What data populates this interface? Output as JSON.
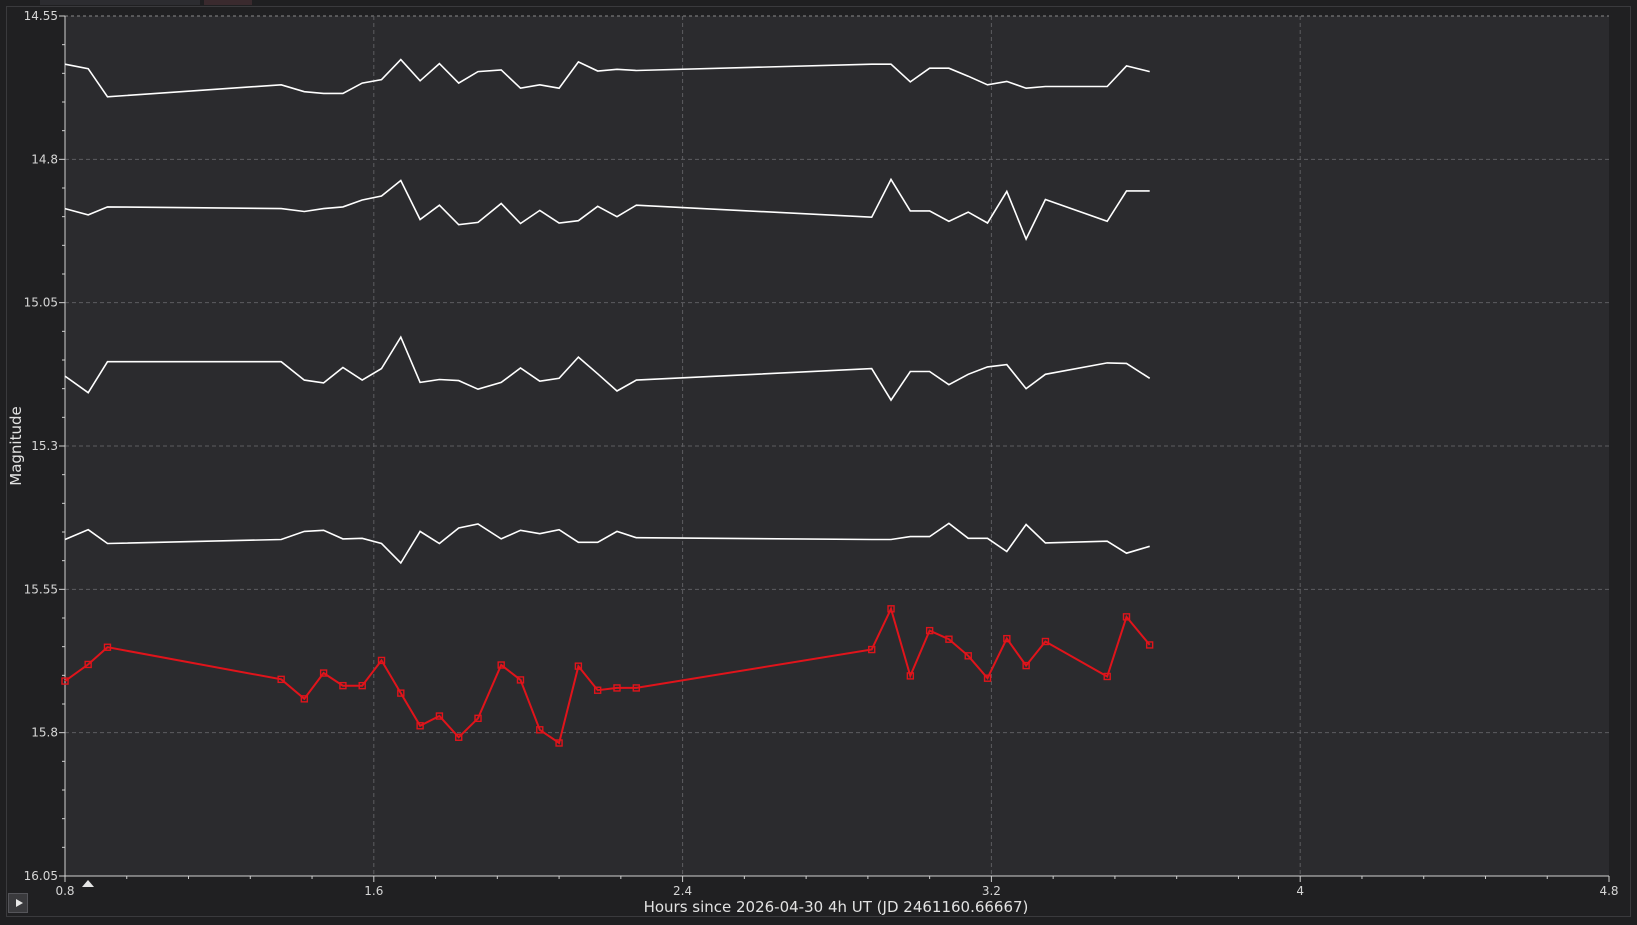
{
  "chart_data": {
    "type": "line",
    "xlabel": "Hours since 2026-04-30 4h UT (JD 2461160.66667)",
    "ylabel": "Magnitude",
    "xlim": [
      0.8,
      4.8
    ],
    "ylim": [
      14.55,
      16.05
    ],
    "y_inverted": true,
    "grid": true,
    "x_ticks": [
      "0.8",
      "1.6",
      "2.4",
      "3.2",
      "4",
      "4.8"
    ],
    "y_ticks": [
      "14.55",
      "14.8",
      "15.05",
      "15.3",
      "15.55",
      "15.8",
      "16.05"
    ],
    "x": [
      0.8,
      0.86,
      0.91,
      1.36,
      1.42,
      1.47,
      1.52,
      1.57,
      1.62,
      1.67,
      1.72,
      1.77,
      1.82,
      1.87,
      1.93,
      1.98,
      2.03,
      2.08,
      2.13,
      2.18,
      2.23,
      2.28,
      2.89,
      2.94,
      2.99,
      3.04,
      3.09,
      3.14,
      3.19,
      3.24,
      3.29,
      3.34,
      3.5,
      3.55,
      3.61
    ],
    "series": [
      {
        "color": "#ffffff",
        "values": [
          14.634,
          14.642,
          14.691,
          14.67,
          14.682,
          14.685,
          14.685,
          14.667,
          14.661,
          14.626,
          14.663,
          14.633,
          14.667,
          14.647,
          14.644,
          14.676,
          14.67,
          14.676,
          14.63,
          14.646,
          14.643,
          14.645,
          14.634,
          14.634,
          14.665,
          14.641,
          14.641,
          14.655,
          14.67,
          14.664,
          14.676,
          14.673,
          14.673,
          14.637,
          14.647
        ],
        "marker": "none"
      },
      {
        "color": "#ffffff",
        "values": [
          14.886,
          14.897,
          14.883,
          14.886,
          14.891,
          14.886,
          14.883,
          14.871,
          14.864,
          14.837,
          14.905,
          14.88,
          14.914,
          14.91,
          14.877,
          14.912,
          14.889,
          14.911,
          14.907,
          14.882,
          14.9,
          14.88,
          14.901,
          14.835,
          14.89,
          14.89,
          14.908,
          14.892,
          14.911,
          14.856,
          14.939,
          14.87,
          14.908,
          14.855,
          14.855
        ],
        "marker": "none"
      },
      {
        "color": "#ffffff",
        "values": [
          15.178,
          15.207,
          15.153,
          15.153,
          15.185,
          15.19,
          15.163,
          15.185,
          15.165,
          15.11,
          15.189,
          15.184,
          15.186,
          15.201,
          15.189,
          15.164,
          15.187,
          15.182,
          15.145,
          15.174,
          15.204,
          15.185,
          15.165,
          15.22,
          15.17,
          15.17,
          15.193,
          15.175,
          15.162,
          15.158,
          15.2,
          15.175,
          15.155,
          15.156,
          15.182
        ],
        "marker": "none"
      },
      {
        "color": "#ffffff",
        "values": [
          15.463,
          15.446,
          15.47,
          15.463,
          15.449,
          15.447,
          15.462,
          15.461,
          15.47,
          15.504,
          15.449,
          15.47,
          15.443,
          15.436,
          15.462,
          15.447,
          15.453,
          15.446,
          15.468,
          15.468,
          15.449,
          15.46,
          15.463,
          15.463,
          15.458,
          15.458,
          15.435,
          15.461,
          15.461,
          15.484,
          15.437,
          15.469,
          15.466,
          15.487,
          15.475
        ],
        "marker": "none"
      },
      {
        "color": "#e0141b",
        "values": [
          15.71,
          15.681,
          15.651,
          15.707,
          15.741,
          15.696,
          15.718,
          15.718,
          15.674,
          15.731,
          15.788,
          15.771,
          15.808,
          15.775,
          15.682,
          15.708,
          15.795,
          15.818,
          15.684,
          15.726,
          15.722,
          15.722,
          15.655,
          15.584,
          15.701,
          15.622,
          15.637,
          15.666,
          15.705,
          15.636,
          15.683,
          15.641,
          15.702,
          15.598,
          15.647
        ],
        "marker": "square"
      }
    ]
  },
  "controls": {
    "play_icon": "play-triangle-icon",
    "marker_icon": "up-triangle-icon"
  }
}
